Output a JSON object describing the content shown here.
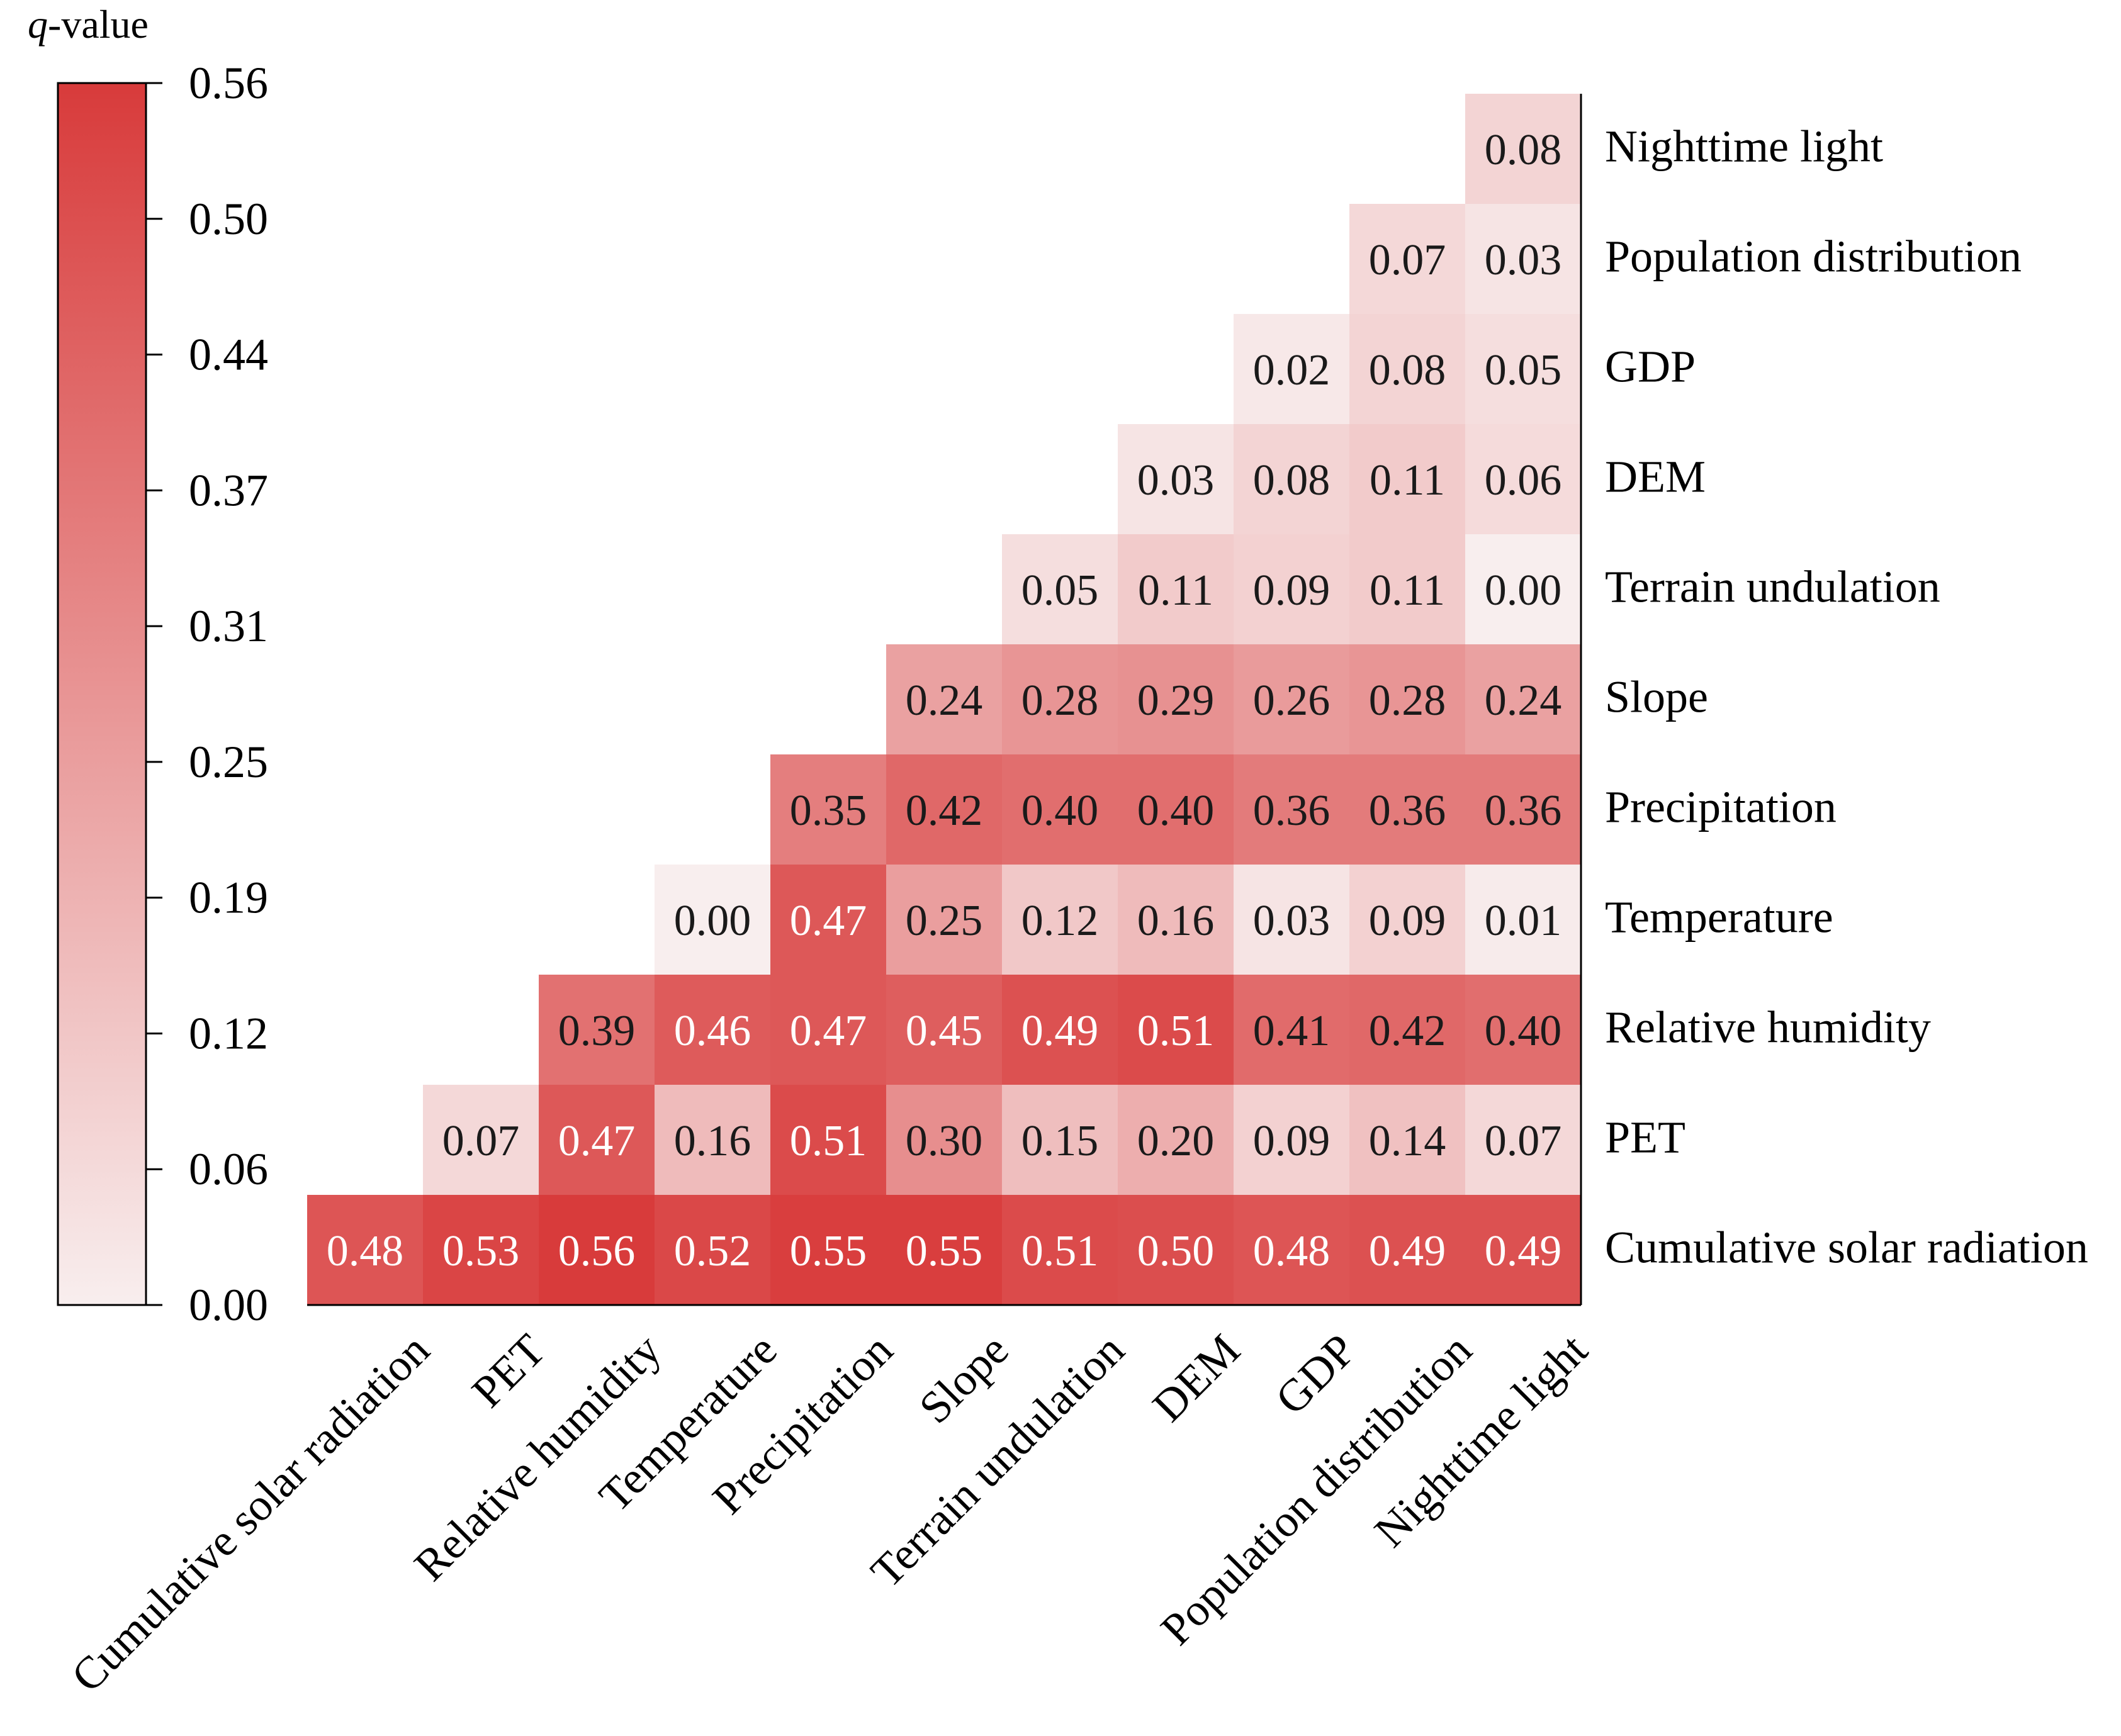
{
  "chart_data": {
    "type": "heatmap",
    "colorbar": {
      "title_italic": "q",
      "title_rest": "-value",
      "min": 0,
      "max": 0.56,
      "ticks": [
        "0.00",
        "0.06",
        "0.12",
        "0.19",
        "0.25",
        "0.31",
        "0.37",
        "0.44",
        "0.50",
        "0.56"
      ],
      "color_low": "#f8eeee",
      "color_high": "#d83b3b"
    },
    "variables": [
      "Cumulative solar radiation",
      "PET",
      "Relative humidity",
      "Temperature",
      "Precipitation",
      "Slope",
      "Terrain undulation",
      "DEM",
      "GDP",
      "Population distribution",
      "Nighttime light"
    ],
    "rows_top_to_bottom": [
      "Nighttime light",
      "Population distribution",
      "GDP",
      "DEM",
      "Terrain undulation",
      "Slope",
      "Precipitation",
      "Temperature",
      "Relative humidity",
      "PET",
      "Cumulative solar radiation"
    ],
    "values": [
      [
        "0.08"
      ],
      [
        "0.07",
        "0.03"
      ],
      [
        "0.02",
        "0.08",
        "0.05"
      ],
      [
        "0.03",
        "0.08",
        "0.11",
        "0.06"
      ],
      [
        "0.05",
        "0.11",
        "0.09",
        "0.11",
        "0.00"
      ],
      [
        "0.24",
        "0.28",
        "0.29",
        "0.26",
        "0.28",
        "0.24"
      ],
      [
        "0.35",
        "0.42",
        "0.40",
        "0.40",
        "0.36",
        "0.36",
        "0.36"
      ],
      [
        "0.00",
        "0.47",
        "0.25",
        "0.12",
        "0.16",
        "0.03",
        "0.09",
        "0.01"
      ],
      [
        "0.39",
        "0.46",
        "0.47",
        "0.45",
        "0.49",
        "0.51",
        "0.41",
        "0.42",
        "0.40"
      ],
      [
        "0.07",
        "0.47",
        "0.16",
        "0.51",
        "0.30",
        "0.15",
        "0.20",
        "0.09",
        "0.14",
        "0.07"
      ],
      [
        "0.48",
        "0.53",
        "0.56",
        "0.52",
        "0.55",
        "0.55",
        "0.51",
        "0.50",
        "0.48",
        "0.49",
        "0.49"
      ]
    ]
  }
}
